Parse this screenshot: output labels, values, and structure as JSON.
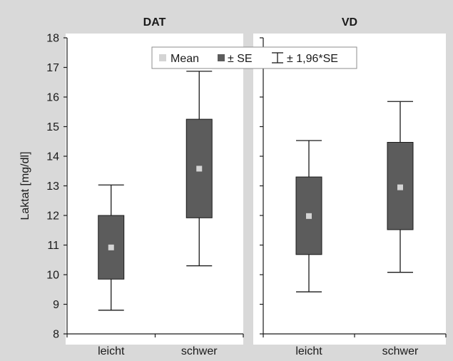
{
  "chart_data": {
    "type": "box",
    "ylabel": "Laktat [mg/dl]",
    "ylim": [
      8,
      18
    ],
    "yticks": [
      "8",
      "9",
      "10",
      "11",
      "12",
      "13",
      "14",
      "15",
      "16",
      "17",
      "18"
    ],
    "grid": false,
    "legend": {
      "placement": "top-center",
      "items": [
        {
          "label": "Mean",
          "marker": "light-square"
        },
        {
          "label": "± SE",
          "marker": "dark-square"
        },
        {
          "label": "± 1,96*SE",
          "marker": "whisker"
        }
      ]
    },
    "colors": {
      "background": "#d9d9d9",
      "panel": "#ffffff",
      "box": "#5c5c5c",
      "mean": "#d4d4d4",
      "line": "#1a1a1a"
    },
    "panels": [
      {
        "title": "DAT",
        "categories": [
          "leicht",
          "schwer"
        ],
        "groups": [
          {
            "category": "leicht",
            "mean": 10.92,
            "se_low": 9.85,
            "se_high": 12.0,
            "ci_low": 8.8,
            "ci_high": 13.03
          },
          {
            "category": "schwer",
            "mean": 13.58,
            "se_low": 11.92,
            "se_high": 15.25,
            "ci_low": 10.3,
            "ci_high": 16.87
          }
        ]
      },
      {
        "title": "VD",
        "categories": [
          "leicht",
          "schwer"
        ],
        "groups": [
          {
            "category": "leicht",
            "mean": 11.98,
            "se_low": 10.68,
            "se_high": 13.3,
            "ci_low": 9.42,
            "ci_high": 14.53
          },
          {
            "category": "schwer",
            "mean": 12.95,
            "se_low": 11.52,
            "se_high": 14.47,
            "ci_low": 10.08,
            "ci_high": 15.85
          }
        ]
      }
    ]
  }
}
